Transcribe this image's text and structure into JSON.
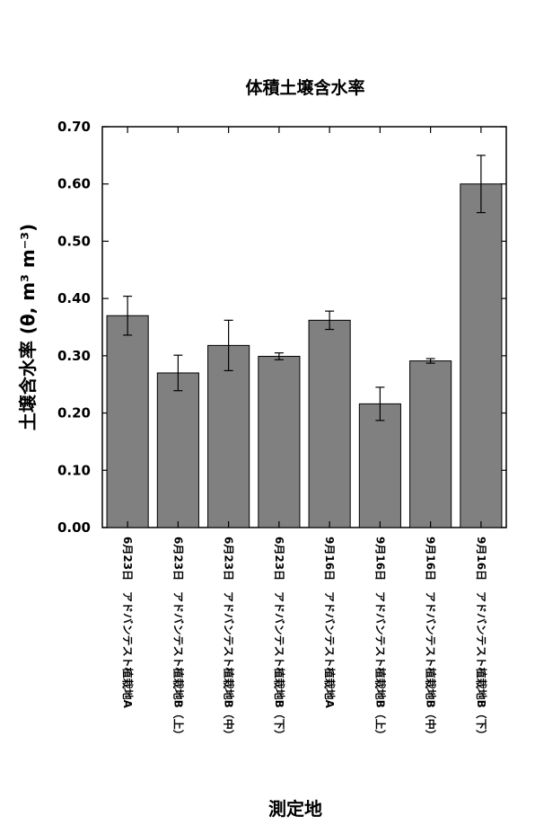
{
  "chart_data": {
    "type": "bar",
    "title": "体積土壌含水率",
    "xlabel": "測定地",
    "ylabel": "土壌含水率 (θ, m³ m⁻³)",
    "ylim": [
      0,
      0.7
    ],
    "yticks": [
      "0.00",
      "0.10",
      "0.20",
      "0.30",
      "0.40",
      "0.50",
      "0.60",
      "0.70"
    ],
    "categories": [
      "6月23日　アドバンテスト植栽地A",
      "6月23日　アドバンテスト植栽地B（上）",
      "6月23日　アドバンテスト植栽地B（中）",
      "6月23日　アドバンテスト植栽地B（下）",
      "9月16日　アドバンテスト植栽地A",
      "9月16日　アドバンテスト植栽地B（上）",
      "9月16日　アドバンテスト植栽地B（中）",
      "9月16日　アドバンテスト植栽地B（下）"
    ],
    "values": [
      0.37,
      0.27,
      0.318,
      0.299,
      0.362,
      0.216,
      0.291,
      0.6
    ],
    "error": [
      0.034,
      0.031,
      0.044,
      0.006,
      0.016,
      0.029,
      0.004,
      0.05
    ],
    "bar_color": "#808080",
    "grid": false
  }
}
